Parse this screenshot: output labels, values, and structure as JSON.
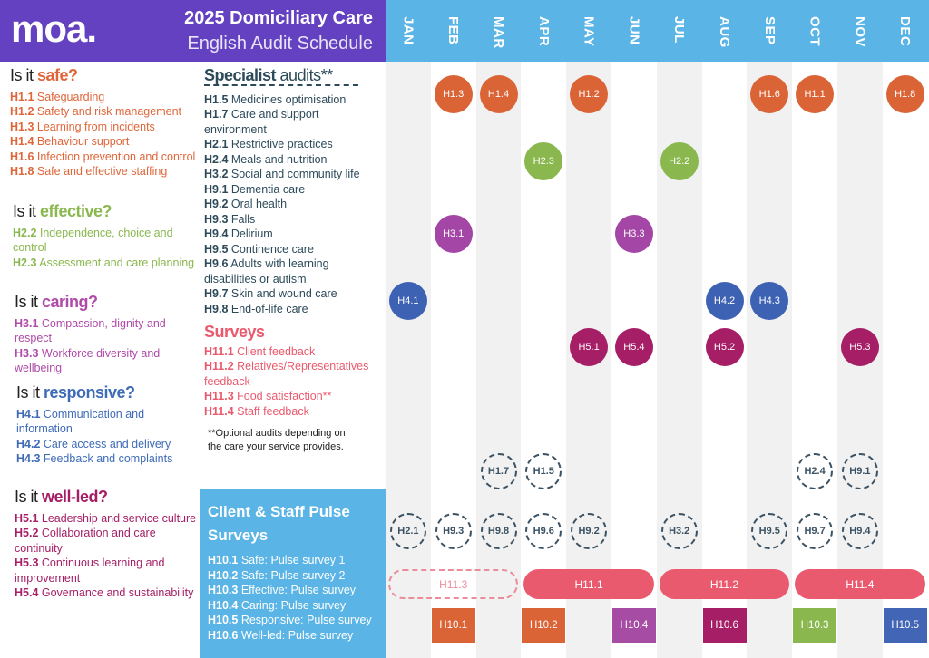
{
  "header": {
    "logo": "moa.",
    "title": "2025 Domiciliary Care",
    "subtitle": "English Audit Schedule"
  },
  "months": [
    "JAN",
    "FEB",
    "MAR",
    "APR",
    "MAY",
    "JUN",
    "JUL",
    "AUG",
    "SEP",
    "OCT",
    "NOV",
    "DEC"
  ],
  "colors": {
    "safe": "#e0663a",
    "effective": "#8ab84f",
    "caring": "#b04aa8",
    "responsive": "#3e6bb8",
    "wellled": "#a51e66",
    "surveys": "#ea5a6e",
    "specialist": "#2c4a5a",
    "header_purple": "#6441c0",
    "header_blue": "#5bb4e6"
  },
  "sections": [
    {
      "prefix": "Is it ",
      "word": "safe?",
      "color": "#e0663a",
      "items": [
        {
          "code": "H1.1",
          "text": " Safeguarding"
        },
        {
          "code": "H1.2",
          "text": " Safety and risk management"
        },
        {
          "code": "H1.3",
          "text": " Learning from incidents"
        },
        {
          "code": "H1.4",
          "text": " Behaviour support"
        },
        {
          "code": "H1.6",
          "text": " Infection prevention and control"
        },
        {
          "code": "H1.8",
          "text": " Safe and effective staffing"
        }
      ]
    },
    {
      "prefix": "Is it ",
      "word": "effective?",
      "color": "#8ab84f",
      "items": [
        {
          "code": "H2.2",
          "text": " Independence, choice and control"
        },
        {
          "code": "H2.3",
          "text": " Assessment and care planning"
        }
      ]
    },
    {
      "prefix": "Is it ",
      "word": "caring?",
      "color": "#b04aa8",
      "items": [
        {
          "code": "H3.1",
          "text": " Compassion, dignity and respect"
        },
        {
          "code": "H3.3",
          "text": " Workforce diversity and wellbeing"
        }
      ]
    },
    {
      "prefix": "Is it ",
      "word": "responsive?",
      "color": "#3e6bb8",
      "items": [
        {
          "code": "H4.1",
          "text": " Communication and information"
        },
        {
          "code": "H4.2",
          "text": " Care access and delivery"
        },
        {
          "code": "H4.3",
          "text": " Feedback and complaints"
        }
      ]
    },
    {
      "prefix": "Is it ",
      "word": "well-led?",
      "color": "#a51e66",
      "items": [
        {
          "code": "H5.1",
          "text": " Leadership and service culture"
        },
        {
          "code": "H5.2",
          "text": " Collaboration and care continuity"
        },
        {
          "code": "H5.3",
          "text": " Continuous learning and improvement"
        },
        {
          "code": "H5.4",
          "text": " Governance and sustainability"
        }
      ]
    }
  ],
  "specialist": {
    "word": "Specialist",
    "suffix": " audits**",
    "color": "#2c4a5a",
    "items": [
      {
        "code": "H1.5",
        "text": " Medicines optimisation"
      },
      {
        "code": "H1.7",
        "text": " Care and support environment"
      },
      {
        "code": "H2.1",
        "text": " Restrictive practices"
      },
      {
        "code": "H2.4",
        "text": " Meals and nutrition"
      },
      {
        "code": "H3.2",
        "text": " Social and community life"
      },
      {
        "code": "H9.1",
        "text": " Dementia care"
      },
      {
        "code": "H9.2",
        "text": " Oral health"
      },
      {
        "code": "H9.3",
        "text": " Falls"
      },
      {
        "code": "H9.4",
        "text": " Delirium"
      },
      {
        "code": "H9.5",
        "text": " Continence care"
      },
      {
        "code": "H9.6",
        "text": " Adults with learning disabilities or autism"
      },
      {
        "code": "H9.7",
        "text": " Skin and wound care"
      },
      {
        "code": "H9.8",
        "text": " End-of-life care"
      }
    ]
  },
  "surveys": {
    "title": "Surveys",
    "color": "#ea5a6e",
    "items": [
      {
        "code": "H11.1",
        "text": " Client feedback"
      },
      {
        "code": "H11.2",
        "text": " Relatives/Representatives feedback"
      },
      {
        "code": "H11.3",
        "text": " Food satisfaction**"
      },
      {
        "code": "H11.4",
        "text": " Staff feedback"
      }
    ]
  },
  "note": "**Optional audits depending on the care your service provides.",
  "pulse": {
    "title": "Client & Staff Pulse Surveys",
    "items": [
      {
        "code": "H10.1",
        "text": " Safe: Pulse survey 1"
      },
      {
        "code": "H10.2",
        "text": " Safe: Pulse survey 2"
      },
      {
        "code": "H10.3",
        "text": " Effective: Pulse survey"
      },
      {
        "code": "H10.4",
        "text": " Caring: Pulse survey"
      },
      {
        "code": "H10.5",
        "text": " Responsive: Pulse survey"
      },
      {
        "code": "H10.6",
        "text": " Well-led: Pulse survey"
      }
    ]
  },
  "schedule": {
    "circles": [
      {
        "row": 0,
        "color": "#db6437",
        "events": [
          {
            "m": 1,
            "label": "H1.3"
          },
          {
            "m": 2,
            "label": "H1.4"
          },
          {
            "m": 4,
            "label": "H1.2"
          },
          {
            "m": 8,
            "label": "H1.6"
          },
          {
            "m": 9,
            "label": "H1.1"
          },
          {
            "m": 11,
            "label": "H1.8"
          }
        ]
      },
      {
        "row": 1,
        "color": "#8ab84f",
        "events": [
          {
            "m": 3,
            "label": "H2.3"
          },
          {
            "m": 6,
            "label": "H2.2"
          }
        ]
      },
      {
        "row": 2,
        "color": "#a346a5",
        "events": [
          {
            "m": 1,
            "label": "H3.1"
          },
          {
            "m": 5,
            "label": "H3.3"
          }
        ]
      },
      {
        "row": 3,
        "color": "#3e62b3",
        "events": [
          {
            "m": 0,
            "label": "H4.1"
          },
          {
            "m": 7,
            "label": "H4.2"
          },
          {
            "m": 8,
            "label": "H4.3"
          }
        ]
      },
      {
        "row": 4,
        "color": "#a51e66",
        "events": [
          {
            "m": 4,
            "label": "H5.1"
          },
          {
            "m": 5,
            "label": "H5.4"
          },
          {
            "m": 7,
            "label": "H5.2"
          },
          {
            "m": 10,
            "label": "H5.3"
          }
        ]
      }
    ],
    "specialist_rows": [
      [
        {
          "m": 2,
          "label": "H1.7"
        },
        {
          "m": 3,
          "label": "H1.5"
        },
        {
          "m": 9,
          "label": "H2.4"
        },
        {
          "m": 10,
          "label": "H9.1"
        }
      ],
      [
        {
          "m": 0,
          "label": "H2.1"
        },
        {
          "m": 1,
          "label": "H9.3"
        },
        {
          "m": 2,
          "label": "H9.8"
        },
        {
          "m": 3,
          "label": "H9.6"
        },
        {
          "m": 4,
          "label": "H9.2"
        },
        {
          "m": 6,
          "label": "H3.2"
        },
        {
          "m": 8,
          "label": "H9.5"
        },
        {
          "m": 9,
          "label": "H9.7"
        },
        {
          "m": 10,
          "label": "H9.4"
        }
      ]
    ],
    "survey_bars": [
      {
        "start": 0,
        "end": 2,
        "label": "H11.3",
        "optional": true
      },
      {
        "start": 3,
        "end": 5,
        "label": "H11.1"
      },
      {
        "start": 6,
        "end": 8,
        "label": "H11.2"
      },
      {
        "start": 9,
        "end": 11,
        "label": "H11.4"
      }
    ],
    "pulse_blocks": [
      {
        "m": 1,
        "label": "H10.1",
        "color": "#db6437"
      },
      {
        "m": 3,
        "label": "H10.2",
        "color": "#db6437"
      },
      {
        "m": 5,
        "label": "H10.4",
        "color": "#a64ca4"
      },
      {
        "m": 7,
        "label": "H10.6",
        "color": "#a51e66"
      },
      {
        "m": 9,
        "label": "H10.3",
        "color": "#8ab84f"
      },
      {
        "m": 11,
        "label": "H10.5",
        "color": "#4365b5"
      }
    ]
  }
}
